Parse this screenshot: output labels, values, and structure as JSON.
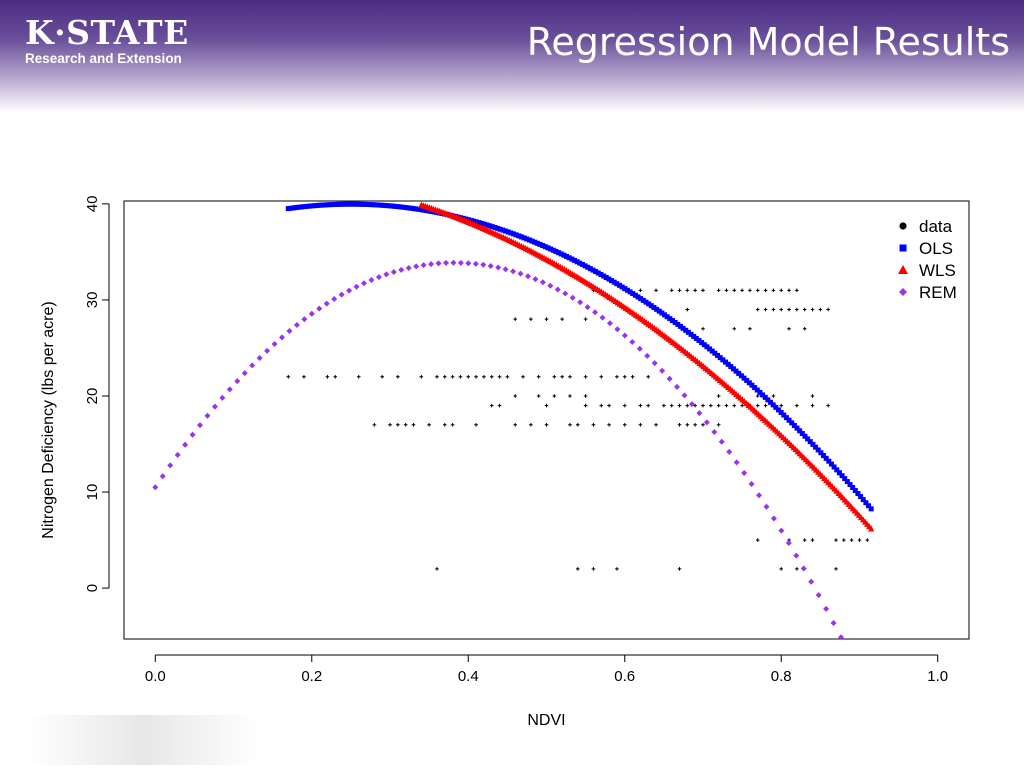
{
  "slide": {
    "title": "Regression Model Results",
    "logo_main": "K·STATE",
    "logo_sub": "Research and Extension",
    "header_color": "#4b2c82"
  },
  "chart_data": {
    "type": "scatter",
    "title": "",
    "xlabel": "NDVI",
    "ylabel": "Nitrogen Deficiency (lbs per acre)",
    "xlim": [
      -0.04,
      1.04
    ],
    "ylim": [
      -5.3,
      40.3
    ],
    "x_ticks": [
      0.0,
      0.2,
      0.4,
      0.6,
      0.8,
      1.0
    ],
    "x_tick_labels": [
      "0.0",
      "0.2",
      "0.4",
      "0.6",
      "0.8",
      "1.0"
    ],
    "y_ticks": [
      0,
      10,
      20,
      30,
      40
    ],
    "y_tick_labels": [
      "0",
      "10",
      "20",
      "30",
      "40"
    ],
    "grid": false,
    "legend_position": "top-right",
    "series": [
      {
        "name": "data",
        "marker": "plus",
        "color": "#000000",
        "points": [
          [
            0.17,
            22
          ],
          [
            0.19,
            22
          ],
          [
            0.22,
            22
          ],
          [
            0.23,
            22
          ],
          [
            0.26,
            22
          ],
          [
            0.29,
            22
          ],
          [
            0.31,
            22
          ],
          [
            0.34,
            22
          ],
          [
            0.36,
            22
          ],
          [
            0.37,
            22
          ],
          [
            0.38,
            22
          ],
          [
            0.39,
            22
          ],
          [
            0.4,
            22
          ],
          [
            0.41,
            22
          ],
          [
            0.42,
            22
          ],
          [
            0.43,
            22
          ],
          [
            0.44,
            22
          ],
          [
            0.45,
            22
          ],
          [
            0.47,
            22
          ],
          [
            0.49,
            22
          ],
          [
            0.51,
            22
          ],
          [
            0.52,
            22
          ],
          [
            0.53,
            22
          ],
          [
            0.55,
            22
          ],
          [
            0.57,
            22
          ],
          [
            0.59,
            22
          ],
          [
            0.6,
            22
          ],
          [
            0.61,
            22
          ],
          [
            0.63,
            22
          ],
          [
            0.28,
            17
          ],
          [
            0.3,
            17
          ],
          [
            0.31,
            17
          ],
          [
            0.32,
            17
          ],
          [
            0.33,
            17
          ],
          [
            0.35,
            17
          ],
          [
            0.37,
            17
          ],
          [
            0.38,
            17
          ],
          [
            0.41,
            17
          ],
          [
            0.46,
            17
          ],
          [
            0.48,
            17
          ],
          [
            0.5,
            17
          ],
          [
            0.53,
            17
          ],
          [
            0.54,
            17
          ],
          [
            0.56,
            17
          ],
          [
            0.58,
            17
          ],
          [
            0.6,
            17
          ],
          [
            0.62,
            17
          ],
          [
            0.64,
            17
          ],
          [
            0.67,
            17
          ],
          [
            0.68,
            17
          ],
          [
            0.69,
            17
          ],
          [
            0.7,
            17
          ],
          [
            0.72,
            17
          ],
          [
            0.46,
            20
          ],
          [
            0.49,
            20
          ],
          [
            0.51,
            20
          ],
          [
            0.53,
            20
          ],
          [
            0.55,
            20
          ],
          [
            0.72,
            20
          ],
          [
            0.77,
            20
          ],
          [
            0.79,
            20
          ],
          [
            0.84,
            20
          ],
          [
            0.43,
            19
          ],
          [
            0.44,
            19
          ],
          [
            0.5,
            19
          ],
          [
            0.55,
            19
          ],
          [
            0.57,
            19
          ],
          [
            0.58,
            19
          ],
          [
            0.6,
            19
          ],
          [
            0.62,
            19
          ],
          [
            0.63,
            19
          ],
          [
            0.65,
            19
          ],
          [
            0.66,
            19
          ],
          [
            0.67,
            19
          ],
          [
            0.68,
            19
          ],
          [
            0.69,
            19
          ],
          [
            0.7,
            19
          ],
          [
            0.71,
            19
          ],
          [
            0.72,
            19
          ],
          [
            0.73,
            19
          ],
          [
            0.74,
            19
          ],
          [
            0.75,
            19
          ],
          [
            0.76,
            19
          ],
          [
            0.77,
            19
          ],
          [
            0.78,
            19
          ],
          [
            0.79,
            19
          ],
          [
            0.8,
            19
          ],
          [
            0.82,
            19
          ],
          [
            0.84,
            19
          ],
          [
            0.86,
            19
          ],
          [
            0.46,
            28
          ],
          [
            0.48,
            28
          ],
          [
            0.5,
            28
          ],
          [
            0.52,
            28
          ],
          [
            0.55,
            28
          ],
          [
            0.68,
            29
          ],
          [
            0.7,
            27
          ],
          [
            0.74,
            27
          ],
          [
            0.76,
            27
          ],
          [
            0.77,
            29
          ],
          [
            0.78,
            29
          ],
          [
            0.79,
            29
          ],
          [
            0.8,
            29
          ],
          [
            0.81,
            29
          ],
          [
            0.82,
            29
          ],
          [
            0.83,
            29
          ],
          [
            0.84,
            29
          ],
          [
            0.85,
            29
          ],
          [
            0.86,
            29
          ],
          [
            0.81,
            27
          ],
          [
            0.83,
            27
          ],
          [
            0.56,
            31
          ],
          [
            0.62,
            31
          ],
          [
            0.64,
            31
          ],
          [
            0.66,
            31
          ],
          [
            0.67,
            31
          ],
          [
            0.68,
            31
          ],
          [
            0.69,
            31
          ],
          [
            0.7,
            31
          ],
          [
            0.72,
            31
          ],
          [
            0.73,
            31
          ],
          [
            0.74,
            31
          ],
          [
            0.75,
            31
          ],
          [
            0.76,
            31
          ],
          [
            0.77,
            31
          ],
          [
            0.78,
            31
          ],
          [
            0.79,
            31
          ],
          [
            0.8,
            31
          ],
          [
            0.81,
            31
          ],
          [
            0.82,
            31
          ],
          [
            0.77,
            5
          ],
          [
            0.81,
            5
          ],
          [
            0.83,
            5
          ],
          [
            0.84,
            5
          ],
          [
            0.87,
            5
          ],
          [
            0.88,
            5
          ],
          [
            0.89,
            5
          ],
          [
            0.9,
            5
          ],
          [
            0.91,
            5
          ],
          [
            0.36,
            2
          ],
          [
            0.54,
            2
          ],
          [
            0.56,
            2
          ],
          [
            0.59,
            2
          ],
          [
            0.67,
            2
          ],
          [
            0.8,
            2
          ],
          [
            0.82,
            2
          ],
          [
            0.87,
            2
          ]
        ]
      },
      {
        "name": "OLS",
        "marker": "square",
        "color": "#0000ff",
        "model": {
          "form": "quadratic",
          "coef": [
            35.48,
            35.9,
            -71.76
          ],
          "x_from": 0.17,
          "x_to": 0.915
        }
      },
      {
        "name": "WLS",
        "marker": "triangle",
        "color": "#ff0000",
        "model": {
          "form": "quadratic",
          "coef": [
            42.41,
            11.55,
            -55.9
          ],
          "x_from": 0.34,
          "x_to": 0.915
        }
      },
      {
        "name": "REM",
        "marker": "diamond",
        "color": "#9933ee",
        "model": {
          "form": "quadratic",
          "coef": [
            10.5,
            122.23,
            -159.8
          ],
          "x_from": 0.0,
          "x_to": 0.905
        }
      }
    ]
  }
}
